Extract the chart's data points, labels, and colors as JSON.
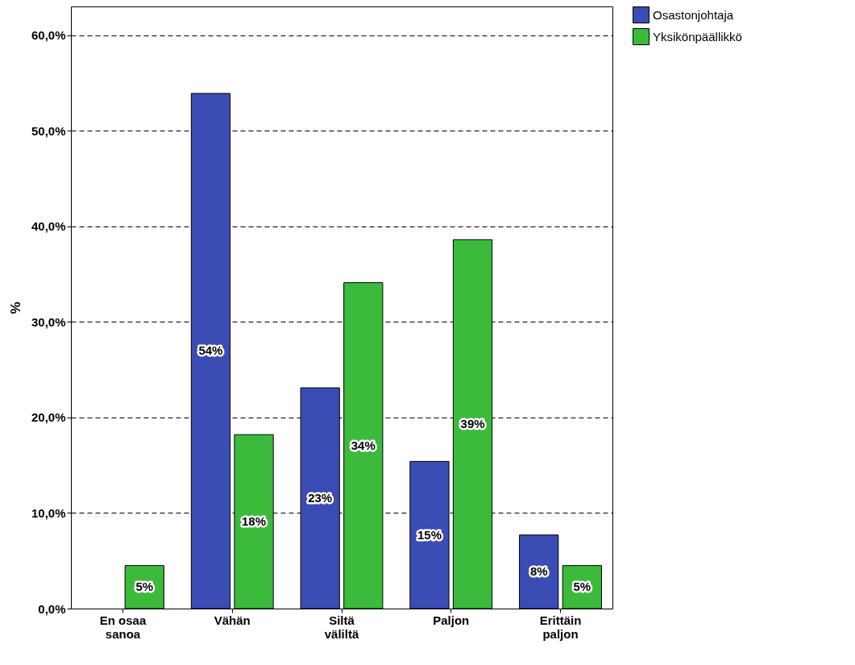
{
  "chart_data": {
    "type": "bar",
    "ylabel": "%",
    "categories": [
      "En osaa sanoa",
      "Vähän",
      "Siltä väliltä",
      "Paljon",
      "Erittäin paljon"
    ],
    "series": [
      {
        "name": "Osastonjohtaja",
        "color": "#3b4cb4",
        "values": [
          null,
          53.9,
          23.1,
          15.4,
          7.7
        ],
        "value_labels": [
          null,
          "54%",
          "23%",
          "15%",
          "8%"
        ]
      },
      {
        "name": "Yksikönpäällikkö",
        "color": "#3cba3c",
        "values": [
          4.5,
          18.2,
          34.1,
          38.6,
          4.5
        ],
        "value_labels": [
          "5%",
          "18%",
          "34%",
          "39%",
          "5%"
        ]
      }
    ],
    "ylim": [
      0,
      63
    ],
    "yticks": [
      {
        "value": 0,
        "label": "0,0%"
      },
      {
        "value": 10,
        "label": "10,0%"
      },
      {
        "value": 20,
        "label": "20,0%"
      },
      {
        "value": 30,
        "label": "30,0%"
      },
      {
        "value": 40,
        "label": "40,0%"
      },
      {
        "value": 50,
        "label": "50,0%"
      },
      {
        "value": 60,
        "label": "60,0%"
      }
    ],
    "grid": "y",
    "legend": "top right"
  }
}
